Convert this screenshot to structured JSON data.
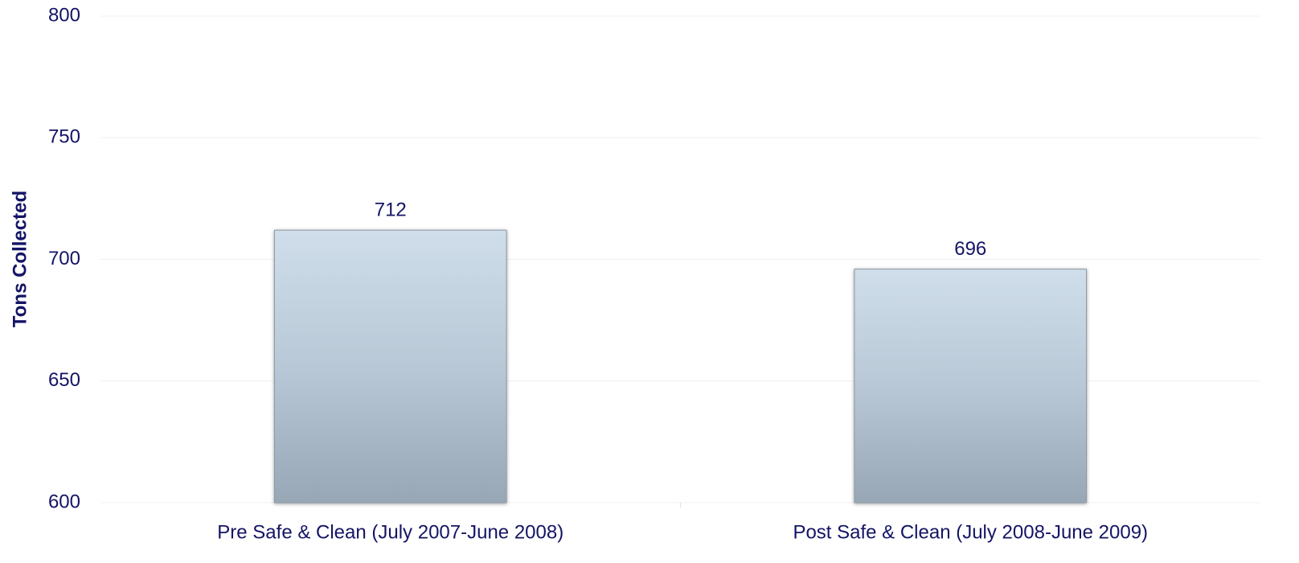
{
  "chart_data": {
    "type": "bar",
    "y_label": "Tons Collected",
    "categories": [
      "Pre Safe & Clean (July 2007-June 2008)",
      "Post Safe & Clean (July 2008-June 2009)"
    ],
    "values": [
      712,
      696
    ],
    "color": "#c9d8e6",
    "ylim": [
      600,
      800
    ],
    "yticks": [
      600,
      650,
      700,
      750,
      800
    ],
    "grid": true
  }
}
